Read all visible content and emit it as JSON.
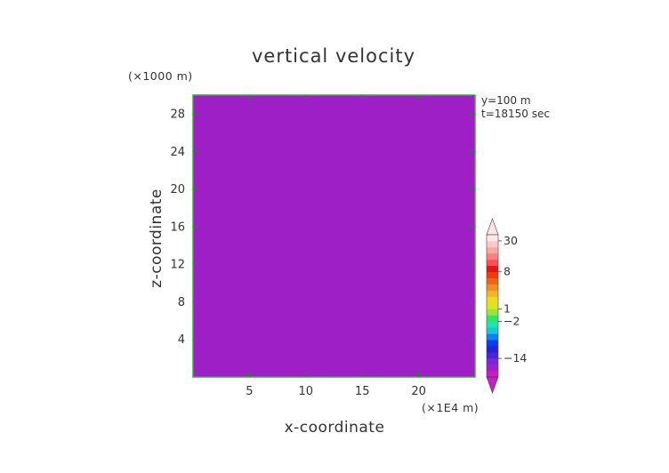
{
  "chart_data": {
    "type": "heatmap",
    "title": "vertical velocity",
    "xlabel": "x-coordinate",
    "ylabel": "z-coordinate",
    "x_unit_label": "(×1E4 m)",
    "y_unit_label": "(×1000 m)",
    "annotations": [
      "y=100 m",
      "t=18150 sec"
    ],
    "x_ticks": [
      5,
      10,
      15,
      20
    ],
    "y_ticks": [
      4,
      8,
      12,
      16,
      20,
      24,
      28
    ],
    "xlim": [
      0,
      25
    ],
    "ylim": [
      0,
      30
    ],
    "colorbar": {
      "tick_labels": [
        "30",
        "8",
        "1",
        "−2",
        "−14"
      ],
      "tick_values": [
        30,
        8,
        1,
        -2,
        -14
      ],
      "colors_low_to_high": [
        "#c81ec8",
        "#a020c8",
        "#7a28d8",
        "#4b22e0",
        "#2222dc",
        "#0a3cf0",
        "#0a82f0",
        "#14c8dc",
        "#1ee6aa",
        "#32e664",
        "#96e632",
        "#dce61e",
        "#f0dc1e",
        "#f5b428",
        "#f58c1e",
        "#f06414",
        "#f03c0a",
        "#e61414",
        "#ff5050",
        "#ff8080",
        "#ffa5a5",
        "#ffc8c8",
        "#ffe6e6"
      ]
    },
    "grid": false,
    "legend": "colorbar-right"
  }
}
